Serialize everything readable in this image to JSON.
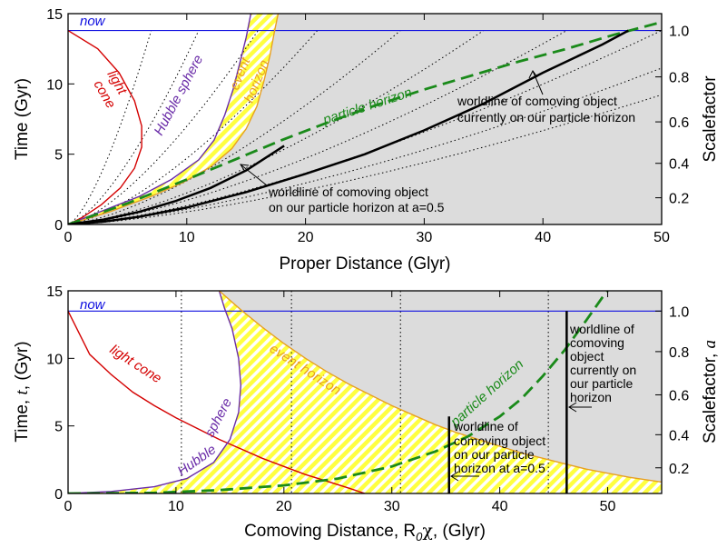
{
  "chart_data": [
    {
      "type": "line",
      "panel": "top",
      "xlabel": "Proper Distance (Glyr)",
      "ylabel": "Time (Gyr)",
      "y2label": "Scalefactor",
      "xlim": [
        0,
        50
      ],
      "ylim": [
        0,
        15
      ],
      "xticks": [
        "0",
        "10",
        "20",
        "30",
        "40",
        "50"
      ],
      "yticks": [
        "0",
        "5",
        "10",
        "15"
      ],
      "y2ticks": [
        {
          "label": "0.2",
          "t": 1.9
        },
        {
          "label": "0.4",
          "t": 4.35
        },
        {
          "label": "0.6",
          "t": 7.3
        },
        {
          "label": "0.8",
          "t": 10.5
        },
        {
          "label": "1.0",
          "t": 13.8
        }
      ],
      "now_t": 13.8,
      "labels": {
        "now": "now",
        "light": "light",
        "cone": "cone",
        "hubble": "Hubble sphere",
        "event": "event",
        "horizon": "horizon",
        "particle": "particle horizon"
      },
      "annotations": [
        {
          "lines": [
            "worldline of comoving object",
            "currently on our particle horizon"
          ]
        },
        {
          "lines": [
            "worldline of comoving object",
            "on our particle horizon at a=0.5"
          ]
        }
      ],
      "series": [
        {
          "key": "light_cone",
          "color": "#d40000",
          "points": [
            [
              0,
              13.8
            ],
            [
              2.5,
              12.5
            ],
            [
              4.3,
              10.8
            ],
            [
              5.6,
              8.8
            ],
            [
              6.2,
              7
            ],
            [
              6.2,
              5.5
            ],
            [
              5.6,
              4
            ],
            [
              4.4,
              2.6
            ],
            [
              2.8,
              1.4
            ],
            [
              1.2,
              0.5
            ],
            [
              0,
              0
            ]
          ]
        },
        {
          "key": "hubble_sphere",
          "color": "#6a2ca8",
          "points": [
            [
              0,
              0
            ],
            [
              3,
              1
            ],
            [
              6,
              2
            ],
            [
              8.7,
              3.2
            ],
            [
              11,
              4.6
            ],
            [
              12.3,
              6
            ],
            [
              13.2,
              7.8
            ],
            [
              13.9,
              9.6
            ],
            [
              14.5,
              11.6
            ],
            [
              15,
              13.3
            ],
            [
              15.4,
              15
            ]
          ]
        },
        {
          "key": "event_horizon",
          "color": "#e8a020",
          "points": [
            [
              0,
              0
            ],
            [
              3.5,
              0.9
            ],
            [
              7,
              2
            ],
            [
              9.7,
              3
            ],
            [
              12,
              4.1
            ],
            [
              13.8,
              5.4
            ],
            [
              15,
              6.8
            ],
            [
              15.9,
              8.4
            ],
            [
              16.5,
              10.2
            ],
            [
              17,
              12
            ],
            [
              17.4,
              13.8
            ],
            [
              17.7,
              15
            ]
          ]
        },
        {
          "key": "particle_horizon",
          "color": "#1a8a1a",
          "dash": "14,7",
          "points": [
            [
              0,
              0
            ],
            [
              5,
              1.5
            ],
            [
              10,
              3.2
            ],
            [
              14,
              4.6
            ],
            [
              18,
              6
            ],
            [
              22,
              7.3
            ],
            [
              26,
              8.5
            ],
            [
              30,
              9.6
            ],
            [
              34,
              10.6
            ],
            [
              38,
              11.6
            ],
            [
              42,
              12.5
            ],
            [
              46,
              13.5
            ],
            [
              50,
              14.4
            ]
          ]
        },
        {
          "key": "worldline_now",
          "color": "#000000",
          "width": 2.5,
          "points": [
            [
              0,
              0
            ],
            [
              3,
              0.2
            ],
            [
              6,
              0.55
            ],
            [
              10,
              1.2
            ],
            [
              15,
              2.3
            ],
            [
              20,
              3.6
            ],
            [
              25,
              5
            ],
            [
              30,
              6.7
            ],
            [
              35,
              8.6
            ],
            [
              40,
              10.8
            ],
            [
              45,
              12.8
            ],
            [
              47.2,
              13.8
            ]
          ]
        },
        {
          "key": "worldline_half",
          "color": "#000000",
          "width": 2.5,
          "points": [
            [
              0,
              0
            ],
            [
              3,
              0.35
            ],
            [
              6,
              0.9
            ],
            [
              9,
              1.65
            ],
            [
              12,
              2.6
            ],
            [
              15,
              3.85
            ],
            [
              18.2,
              5.6
            ]
          ]
        }
      ],
      "dotted_worldlines_dmax": [
        7,
        11,
        16,
        21,
        28,
        35,
        42,
        50,
        58,
        66
      ]
    },
    {
      "type": "line",
      "panel": "bottom",
      "xlabel": "Comoving Distance, R",
      "xlabel_sub": "0",
      "xlabel_sym": "χ",
      "xlabel_tail": ", (Glyr)",
      "ylabel_pre": "Time, ",
      "ylabel_sym": "t",
      "ylabel_post": ", (Gyr)",
      "y2label_pre": "Scalefactor, ",
      "y2label_sym": "a",
      "xlim": [
        0,
        55
      ],
      "ylim": [
        0,
        15
      ],
      "xticks": [
        "0",
        "10",
        "20",
        "30",
        "40",
        "50"
      ],
      "yticks": [
        "0",
        "5",
        "10",
        "15"
      ],
      "y2ticks": [
        {
          "label": "0.2",
          "t": 1.9
        },
        {
          "label": "0.4",
          "t": 4.35
        },
        {
          "label": "0.6",
          "t": 7.3
        },
        {
          "label": "0.8",
          "t": 10.5
        },
        {
          "label": "1.0",
          "t": 13.5
        }
      ],
      "now_t": 13.5,
      "labels": {
        "now": "now",
        "light_cone": "light cone",
        "hubble": "Hubble",
        "sphere": "sphere",
        "event_horizon": "event horizon",
        "particle": "particle horizon"
      },
      "annotations": [
        {
          "lines": [
            "worldline of",
            "comoving object",
            "on our particle",
            "horizon at a=0.5"
          ]
        },
        {
          "lines": [
            "worldline of",
            "comoving",
            "object",
            "currently on",
            "our particle",
            "horizon"
          ]
        }
      ],
      "comoving_dotted_x": [
        10.5,
        20.7,
        30.8,
        44.5
      ],
      "worldline_half_x": 35.3,
      "worldline_now_x": 46.2,
      "worldline_half_top_t": 5.7,
      "series": [
        {
          "key": "light_cone",
          "color": "#d40000",
          "points": [
            [
              0,
              13.5
            ],
            [
              2,
              10.3
            ],
            [
              4,
              8.8
            ],
            [
              6,
              7.5
            ],
            [
              8,
              6.5
            ],
            [
              10,
              5.6
            ],
            [
              12,
              4.8
            ],
            [
              14,
              4
            ],
            [
              16,
              3.3
            ],
            [
              18,
              2.6
            ],
            [
              20,
              2
            ],
            [
              22,
              1.4
            ],
            [
              24,
              0.9
            ],
            [
              26,
              0.4
            ],
            [
              27.5,
              0
            ]
          ]
        },
        {
          "key": "hubble_sphere",
          "color": "#6a2ca8",
          "points": [
            [
              0,
              0
            ],
            [
              4,
              0.15
            ],
            [
              8,
              0.5
            ],
            [
              11,
              1.1
            ],
            [
              13.5,
              2.3
            ],
            [
              15,
              4
            ],
            [
              15.8,
              6
            ],
            [
              16,
              8
            ],
            [
              15.8,
              10
            ],
            [
              15.2,
              12.2
            ],
            [
              14.5,
              13.7
            ],
            [
              14,
              15
            ]
          ]
        },
        {
          "key": "event_horizon",
          "color": "#e8a020",
          "points": [
            [
              14,
              15
            ],
            [
              16,
              13.6
            ],
            [
              18,
              12.3
            ],
            [
              20,
              11.1
            ],
            [
              22,
              10
            ],
            [
              24,
              9
            ],
            [
              26,
              8.1
            ],
            [
              28,
              7.3
            ],
            [
              30,
              6.5
            ],
            [
              32,
              5.8
            ],
            [
              34,
              5.1
            ],
            [
              36,
              4.5
            ],
            [
              38,
              4
            ],
            [
              40,
              3.5
            ],
            [
              42,
              3
            ],
            [
              44,
              2.6
            ],
            [
              46,
              2.2
            ],
            [
              48,
              1.8
            ],
            [
              50,
              1.5
            ],
            [
              52,
              1.2
            ],
            [
              55,
              0.85
            ]
          ]
        },
        {
          "key": "particle_horizon",
          "color": "#1a8a1a",
          "dash": "14,7",
          "points": [
            [
              0,
              0
            ],
            [
              8,
              0.05
            ],
            [
              14,
              0.25
            ],
            [
              20,
              0.6
            ],
            [
              25,
              1.1
            ],
            [
              30,
              2
            ],
            [
              34,
              3.1
            ],
            [
              37,
              4.2
            ],
            [
              40,
              5.7
            ],
            [
              42,
              7
            ],
            [
              44,
              8.7
            ],
            [
              46,
              10.6
            ],
            [
              48,
              12.8
            ],
            [
              49.5,
              14.5
            ],
            [
              50,
              15
            ]
          ]
        }
      ]
    }
  ]
}
